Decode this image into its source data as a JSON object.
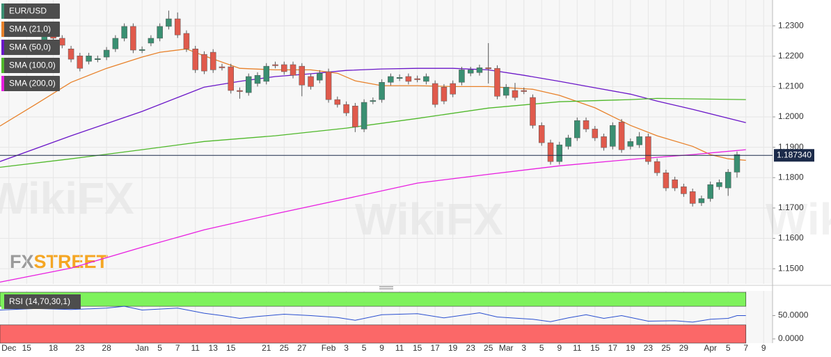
{
  "chart_data": {
    "type": "candlestick",
    "symbol": "EUR/USD",
    "up_color": "#3a8f72",
    "down_color": "#e05a4c",
    "x": [
      4,
      5,
      6,
      7,
      8,
      9,
      10,
      11,
      12,
      13,
      14,
      15,
      16,
      17,
      18,
      19,
      20,
      21,
      22,
      23,
      24,
      25,
      26,
      27,
      28,
      29,
      30,
      31,
      32,
      33,
      34,
      35,
      36,
      37,
      38,
      39,
      40,
      41,
      42,
      43,
      44,
      45,
      46,
      47,
      48,
      49,
      50,
      51,
      52,
      53,
      54,
      55,
      56,
      57,
      58,
      59,
      60,
      61,
      62,
      63,
      64,
      65,
      66,
      67,
      68,
      69,
      70,
      71,
      72,
      73,
      74,
      75,
      76,
      77,
      78,
      79,
      80,
      81,
      82
    ],
    "open": [
      1.2224,
      1.2282,
      1.2259,
      1.2224,
      1.2201,
      1.2183,
      1.219,
      1.2197,
      1.2224,
      1.2259,
      1.2298,
      1.222,
      1.2243,
      1.2259,
      1.2298,
      1.2323,
      1.2275,
      1.2224,
      1.2206,
      1.2213,
      1.2165,
      1.2165,
      1.2087,
      1.208,
      1.211,
      1.2117,
      1.2172,
      1.2172,
      1.2172,
      1.2167,
      1.2133,
      1.2121,
      1.2149,
      1.2057,
      1.2041,
      1.2036,
      1.196,
      1.2052,
      1.2057,
      1.2114,
      1.2128,
      1.2133,
      1.2126,
      1.2117,
      1.211,
      1.2098,
      1.211,
      1.2114,
      1.2144,
      1.2146,
      1.2162,
      1.216,
      1.2071,
      1.2087,
      1.2087,
      1.2064,
      1.1972,
      1.1915,
      1.1853,
      1.1903,
      1.1931,
      1.1988,
      1.196,
      1.1935,
      1.1903,
      1.1983,
      1.1903,
      1.1908,
      1.1935,
      1.1853,
      1.1816,
      1.1793,
      1.177,
      1.1754,
      1.1717,
      1.1731,
      1.177,
      1.1766,
      1.1818
    ],
    "high": [
      1.2292,
      1.2292,
      1.2269,
      1.2234,
      1.2211,
      1.2211,
      1.2202,
      1.223,
      1.2269,
      1.2308,
      1.2308,
      1.2232,
      1.2269,
      1.2308,
      1.235,
      1.2344,
      1.2285,
      1.2234,
      1.2216,
      1.2223,
      1.2175,
      1.2175,
      1.2097,
      1.2143,
      1.2147,
      1.2177,
      1.2182,
      1.2182,
      1.2182,
      1.2177,
      1.2143,
      1.2154,
      1.2159,
      1.2067,
      1.2051,
      1.2046,
      1.2058,
      1.2064,
      1.2124,
      1.2143,
      1.214,
      1.2143,
      1.2136,
      1.2143,
      1.212,
      1.2108,
      1.212,
      1.2165,
      1.2165,
      1.2172,
      1.2243,
      1.217,
      1.2108,
      1.2112,
      1.2097,
      1.2074,
      1.1982,
      1.1925,
      1.1918,
      1.1941,
      1.1998,
      1.1998,
      1.197,
      1.1945,
      1.1982,
      1.1993,
      1.1929,
      1.195,
      1.1945,
      1.1863,
      1.1826,
      1.1803,
      1.178,
      1.1764,
      1.1741,
      1.1787,
      1.1794,
      1.1828,
      1.1886
    ],
    "low": [
      1.2214,
      1.2249,
      1.2226,
      1.218,
      1.215,
      1.2173,
      1.218,
      1.2187,
      1.2214,
      1.2249,
      1.221,
      1.221,
      1.2233,
      1.2249,
      1.2288,
      1.226,
      1.2214,
      1.2145,
      1.2141,
      1.2145,
      1.2153,
      1.2077,
      1.206,
      1.207,
      1.21,
      1.2107,
      1.216,
      1.2139,
      1.2127,
      1.2068,
      1.209,
      1.2111,
      1.2047,
      1.2031,
      1.2003,
      1.195,
      1.195,
      1.2042,
      1.2047,
      1.2104,
      1.2118,
      1.2107,
      1.2114,
      1.2107,
      1.2031,
      1.2042,
      1.2065,
      1.2104,
      1.2134,
      1.2136,
      1.211,
      1.2058,
      1.2061,
      1.2054,
      1.2075,
      1.1962,
      1.1905,
      1.1843,
      1.1843,
      1.1893,
      1.1921,
      1.195,
      1.1921,
      1.1889,
      1.1893,
      1.1882,
      1.1893,
      1.1898,
      1.1843,
      1.1806,
      1.1756,
      1.1756,
      1.1737,
      1.1705,
      1.1707,
      1.1721,
      1.176,
      1.174,
      1.18
    ],
    "close": [
      1.2282,
      1.2259,
      1.2236,
      1.219,
      1.216,
      1.2201,
      1.2192,
      1.222,
      1.2259,
      1.2298,
      1.222,
      1.2222,
      1.2259,
      1.2298,
      1.2323,
      1.227,
      1.2224,
      1.2155,
      1.2151,
      1.2155,
      1.2163,
      1.2087,
      1.2085,
      1.2133,
      1.2137,
      1.2167,
      1.217,
      1.2149,
      1.2137,
      1.2105,
      1.21,
      1.2144,
      1.2057,
      1.2041,
      1.2013,
      1.1967,
      1.2048,
      1.2054,
      1.2114,
      1.2133,
      1.213,
      1.2117,
      1.2124,
      1.2133,
      1.2041,
      1.2052,
      1.2075,
      1.2155,
      1.2155,
      1.2162,
      1.216,
      1.2068,
      1.2098,
      1.2064,
      1.2085,
      1.1972,
      1.1915,
      1.1853,
      1.1908,
      1.1931,
      1.1988,
      1.196,
      1.1931,
      1.1899,
      1.1972,
      1.1892,
      1.1919,
      1.1935,
      1.1853,
      1.1816,
      1.1766,
      1.1766,
      1.1747,
      1.1715,
      1.1731,
      1.1777,
      1.1784,
      1.1818,
      1.1876
    ],
    "xlim": [
      -1,
      86
    ],
    "xticks": [
      {
        "value": 0,
        "label": "Dec"
      },
      {
        "value": 2,
        "label": "15"
      },
      {
        "value": 5,
        "label": "18"
      },
      {
        "value": 8,
        "label": "23"
      },
      {
        "value": 11,
        "label": "28"
      },
      {
        "value": 15,
        "label": "Jan"
      },
      {
        "value": 17,
        "label": "5"
      },
      {
        "value": 19,
        "label": "7"
      },
      {
        "value": 21,
        "label": "11"
      },
      {
        "value": 23,
        "label": "13"
      },
      {
        "value": 25,
        "label": "15"
      },
      {
        "value": 29,
        "label": "21"
      },
      {
        "value": 31,
        "label": "25"
      },
      {
        "value": 33,
        "label": "27"
      },
      {
        "value": 36,
        "label": "Feb"
      },
      {
        "value": 38,
        "label": "3"
      },
      {
        "value": 40,
        "label": "5"
      },
      {
        "value": 42,
        "label": "9"
      },
      {
        "value": 44,
        "label": "11"
      },
      {
        "value": 46,
        "label": "15"
      },
      {
        "value": 48,
        "label": "17"
      },
      {
        "value": 50,
        "label": "19"
      },
      {
        "value": 52,
        "label": "23"
      },
      {
        "value": 54,
        "label": "25"
      },
      {
        "value": 56,
        "label": "Mar"
      },
      {
        "value": 58,
        "label": "3"
      },
      {
        "value": 60,
        "label": "5"
      },
      {
        "value": 62,
        "label": "9"
      },
      {
        "value": 64,
        "label": "11"
      },
      {
        "value": 66,
        "label": "15"
      },
      {
        "value": 68,
        "label": "17"
      },
      {
        "value": 70,
        "label": "19"
      },
      {
        "value": 72,
        "label": "23"
      },
      {
        "value": 74,
        "label": "25"
      },
      {
        "value": 76,
        "label": "29"
      },
      {
        "value": 79,
        "label": "Apr"
      },
      {
        "value": 81,
        "label": "5"
      },
      {
        "value": 83,
        "label": "7"
      },
      {
        "value": 85,
        "label": "9"
      }
    ],
    "ylim": [
      1.145,
      1.2385
    ],
    "yticks": [
      {
        "value": 1.23,
        "label": "1.2300"
      },
      {
        "value": 1.22,
        "label": "1.2200"
      },
      {
        "value": 1.21,
        "label": "1.2100"
      },
      {
        "value": 1.2,
        "label": "1.2000"
      },
      {
        "value": 1.19,
        "label": "1.1900"
      },
      {
        "value": 1.18,
        "label": "1.1800"
      },
      {
        "value": 1.17,
        "label": "1.1700"
      },
      {
        "value": 1.16,
        "label": "1.1600"
      },
      {
        "value": 1.15,
        "label": "1.1500"
      }
    ],
    "current_price": {
      "value": 1.18734,
      "label": "1.187340"
    },
    "overlays": [
      {
        "name": "SMA (21,0)",
        "color": "#e8812a",
        "x": [
          -1,
          3,
          7,
          11,
          15,
          17,
          20,
          22,
          26,
          30,
          34,
          37,
          39,
          42,
          46,
          50,
          54,
          59,
          62,
          66,
          70,
          73,
          77,
          79,
          81,
          83
        ],
        "values": [
          1.197,
          1.2041,
          1.2114,
          1.216,
          1.2197,
          1.2213,
          1.2224,
          1.2201,
          1.216,
          1.2155,
          1.2155,
          1.2144,
          1.2119,
          1.2103,
          1.2103,
          1.21,
          1.21,
          1.2091,
          1.2071,
          1.203,
          1.1972,
          1.1938,
          1.1903,
          1.1876,
          1.1862,
          1.1857
        ]
      },
      {
        "name": "SMA (50,0)",
        "color": "#6a16c8",
        "x": [
          -1,
          7,
          15,
          19,
          22,
          26,
          30,
          34,
          38,
          42,
          46,
          50,
          54,
          58,
          62,
          66,
          70,
          73,
          77,
          83
        ],
        "values": [
          1.1853,
          1.1938,
          1.2018,
          1.2064,
          1.2098,
          1.2117,
          1.2133,
          1.2142,
          1.2153,
          1.2158,
          1.216,
          1.216,
          1.2155,
          1.2137,
          1.2117,
          1.2096,
          1.2075,
          1.2052,
          1.2025,
          1.1981
        ]
      },
      {
        "name": "SMA (100,0)",
        "color": "#4fb82a",
        "x": [
          -1,
          7,
          15,
          22,
          30,
          38,
          46,
          54,
          62,
          70,
          73,
          83
        ],
        "values": [
          1.1834,
          1.1862,
          1.1892,
          1.1919,
          1.1938,
          1.1963,
          1.1995,
          1.2029,
          1.205,
          1.2057,
          1.2061,
          1.2057
        ]
      },
      {
        "name": "SMA (200,0)",
        "color": "#e81ee0",
        "x": [
          -1,
          7,
          15,
          22,
          30,
          38,
          46,
          54,
          62,
          70,
          77,
          83
        ],
        "values": [
          1.1456,
          1.1502,
          1.1571,
          1.1628,
          1.1681,
          1.1731,
          1.1782,
          1.1811,
          1.1839,
          1.186,
          1.1876,
          1.1892
        ]
      }
    ],
    "rsi": {
      "name": "RSI (14,70,30,1)",
      "color": "#2a4fd0",
      "x": [
        -1,
        3,
        7,
        11,
        13,
        15,
        19,
        22,
        24,
        26,
        28,
        31,
        34,
        37,
        39,
        42,
        46,
        49,
        53,
        55,
        59,
        61,
        63,
        65,
        67,
        69,
        72,
        75,
        77,
        79,
        81,
        82,
        83
      ],
      "values": [
        62,
        65,
        63,
        66,
        70,
        62,
        66,
        55,
        50,
        44,
        48,
        53,
        50,
        46,
        40,
        52,
        54,
        45,
        56,
        47,
        42,
        37,
        45,
        52,
        44,
        50,
        38,
        39,
        36,
        42,
        44,
        50,
        50
      ],
      "ylim": [
        -9,
        103
      ],
      "yticks": [
        {
          "value": 50,
          "label": "50.0000"
        },
        {
          "value": 0,
          "label": "0.0000"
        }
      ],
      "overbought": 70,
      "oversold": 30,
      "band_top": 100,
      "overbought_color": "#7ef25c",
      "oversold_color": "#fb6868"
    },
    "watermark": "WikiFX",
    "brand": [
      "FX",
      "STREET"
    ]
  }
}
